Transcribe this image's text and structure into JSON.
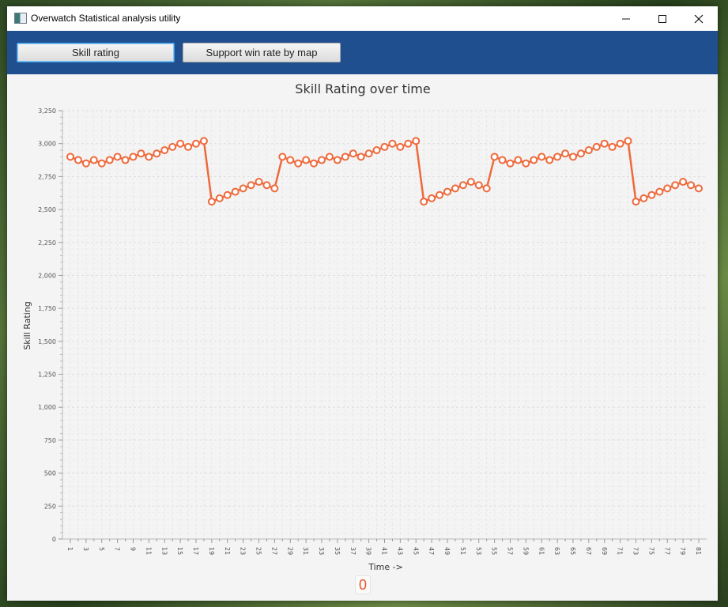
{
  "window": {
    "title": "Overwatch Statistical analysis utility",
    "icons": {
      "app": "app-window-icon",
      "minimize": "minimize-icon",
      "maximize": "maximize-icon",
      "close": "close-icon"
    }
  },
  "toolbar": {
    "skill_rating_label": "Skill rating",
    "support_win_rate_label": "Support win rate by map"
  },
  "colors": {
    "series": "#ee6a3c",
    "toolbar": "#1f4f8e",
    "counter": "#e8572a"
  },
  "counter": {
    "value": "0"
  },
  "chart_data": {
    "type": "line",
    "title": "Skill Rating over time",
    "xlabel": "Time ->",
    "ylabel": "Skill Rating",
    "ylim": [
      0,
      3250
    ],
    "yticks": [
      0,
      250,
      500,
      750,
      1000,
      1250,
      1500,
      1750,
      2000,
      2250,
      2500,
      2750,
      3000,
      3250
    ],
    "ytick_labels": [
      "0",
      "250",
      "500",
      "750",
      "1,000",
      "1,250",
      "1,500",
      "1,750",
      "2,000",
      "2,250",
      "2,500",
      "2,750",
      "3,000",
      "3,250"
    ],
    "xlim": [
      1,
      81
    ],
    "xtick_labels": [
      "1",
      "3",
      "5",
      "7",
      "9",
      "11",
      "13",
      "15",
      "17",
      "19",
      "21",
      "23",
      "25",
      "27",
      "29",
      "31",
      "33",
      "35",
      "37",
      "39",
      "41",
      "43",
      "45",
      "47",
      "49",
      "51",
      "53",
      "55",
      "57",
      "59",
      "61",
      "63",
      "65",
      "67",
      "69",
      "71",
      "73",
      "75",
      "77",
      "79",
      "81"
    ],
    "grid": true,
    "legend": "none",
    "x": [
      1,
      2,
      3,
      4,
      5,
      6,
      7,
      8,
      9,
      10,
      11,
      12,
      13,
      14,
      15,
      16,
      17,
      18,
      19,
      20,
      21,
      22,
      23,
      24,
      25,
      26,
      27,
      28,
      29,
      30,
      31,
      32,
      33,
      34,
      35,
      36,
      37,
      38,
      39,
      40,
      41,
      42,
      43,
      44,
      45,
      46,
      47,
      48,
      49,
      50,
      51,
      52,
      53,
      54,
      55,
      56,
      57,
      58,
      59,
      60,
      61,
      62,
      63,
      64,
      65,
      66,
      67,
      68,
      69,
      70,
      71,
      72,
      73,
      74,
      75,
      76,
      77,
      78,
      79,
      80,
      81
    ],
    "series": [
      {
        "values": [
          2900,
          2875,
          2850,
          2875,
          2850,
          2875,
          2900,
          2875,
          2900,
          2925,
          2900,
          2925,
          2950,
          2975,
          3000,
          2975,
          3000,
          3020,
          2560,
          2585,
          2610,
          2635,
          2660,
          2685,
          2710,
          2685,
          2660,
          2900,
          2875,
          2850,
          2875,
          2850,
          2875,
          2900,
          2875,
          2900,
          2925,
          2900,
          2925,
          2950,
          2975,
          3000,
          2975,
          3000,
          3020,
          2560,
          2585,
          2610,
          2635,
          2660,
          2685,
          2710,
          2685,
          2660,
          2900,
          2875,
          2850,
          2875,
          2850,
          2875,
          2900,
          2875,
          2900,
          2925,
          2900,
          2925,
          2950,
          2975,
          3000,
          2975,
          3000,
          3020,
          2560,
          2585,
          2610,
          2635,
          2660,
          2685,
          2710,
          2685,
          2660
        ]
      }
    ]
  }
}
